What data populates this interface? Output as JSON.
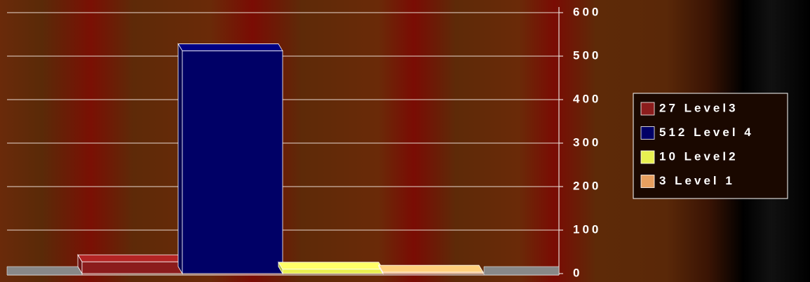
{
  "chart_data": {
    "type": "bar3d",
    "series": [
      {
        "name": "27 Level3",
        "color": "#8b1c1c",
        "values": [
          27
        ]
      },
      {
        "name": "512 Level 4",
        "color": "#000066",
        "values": [
          512
        ]
      },
      {
        "name": "10 Level2",
        "color": "#e8f050",
        "values": [
          10
        ]
      },
      {
        "name": "3 Level 1",
        "color": "#e8a060",
        "values": [
          3
        ]
      }
    ],
    "ylim": [
      0,
      600
    ],
    "yticks": [
      0,
      100,
      200,
      300,
      400,
      500,
      600
    ],
    "grid": true,
    "legend": "right"
  }
}
